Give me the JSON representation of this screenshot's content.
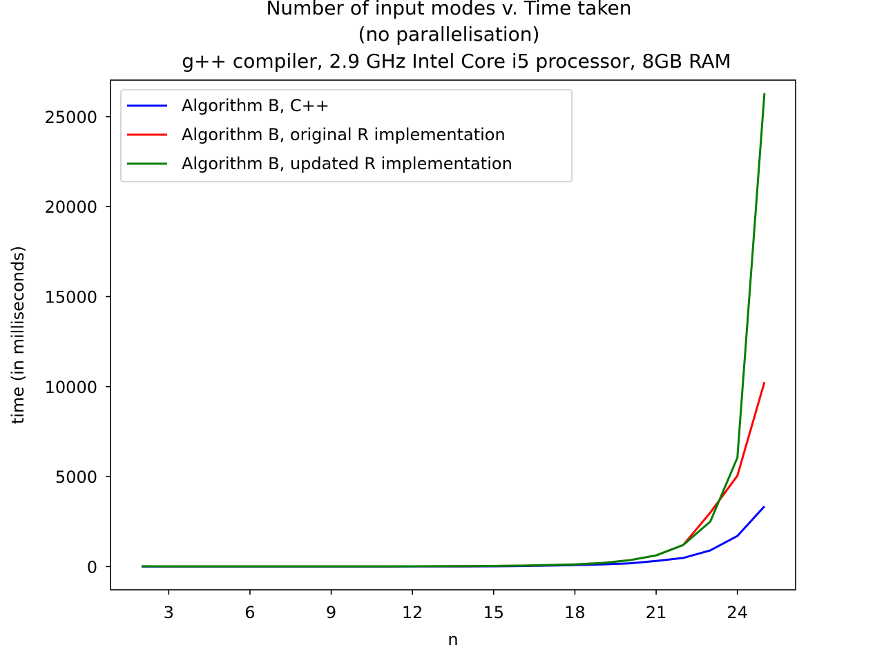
{
  "chart_data": {
    "type": "line",
    "title_lines": [
      "Number of input modes v. Time taken",
      "(no parallelisation)",
      "g++ compiler, 2.9 GHz Intel Core i5 processor, 8GB RAM"
    ],
    "xlabel": "n",
    "ylabel": "time (in milliseconds)",
    "xlim": [
      0.85,
      26.15
    ],
    "ylim": [
      -1290,
      27030
    ],
    "x_ticks": [
      3,
      6,
      9,
      12,
      15,
      18,
      21,
      24
    ],
    "y_ticks": [
      0,
      5000,
      10000,
      15000,
      20000,
      25000
    ],
    "grid": false,
    "legend_position": "top-left",
    "x": [
      2,
      3,
      4,
      5,
      6,
      7,
      8,
      9,
      10,
      11,
      12,
      13,
      14,
      15,
      16,
      17,
      18,
      19,
      20,
      21,
      22,
      23,
      24,
      25
    ],
    "series": [
      {
        "name": "Algorithm B, C++",
        "color": "#0000ff",
        "values": [
          0,
          0,
          0,
          0,
          0,
          0,
          0,
          0,
          0,
          1,
          2,
          4,
          8,
          15,
          30,
          55,
          80,
          120,
          180,
          310,
          480,
          900,
          1700,
          3350
        ]
      },
      {
        "name": "Algorithm B, original R implementation",
        "color": "#ff0000",
        "values": [
          20,
          10,
          10,
          10,
          10,
          10,
          10,
          10,
          10,
          10,
          15,
          20,
          25,
          35,
          55,
          80,
          120,
          200,
          350,
          620,
          1200,
          3000,
          5050,
          10250
        ]
      },
      {
        "name": "Algorithm B, updated R implementation",
        "color": "#008000",
        "values": [
          20,
          10,
          10,
          10,
          10,
          10,
          10,
          10,
          10,
          10,
          15,
          20,
          25,
          35,
          55,
          80,
          120,
          200,
          350,
          620,
          1200,
          2500,
          6050,
          26300
        ]
      }
    ]
  }
}
